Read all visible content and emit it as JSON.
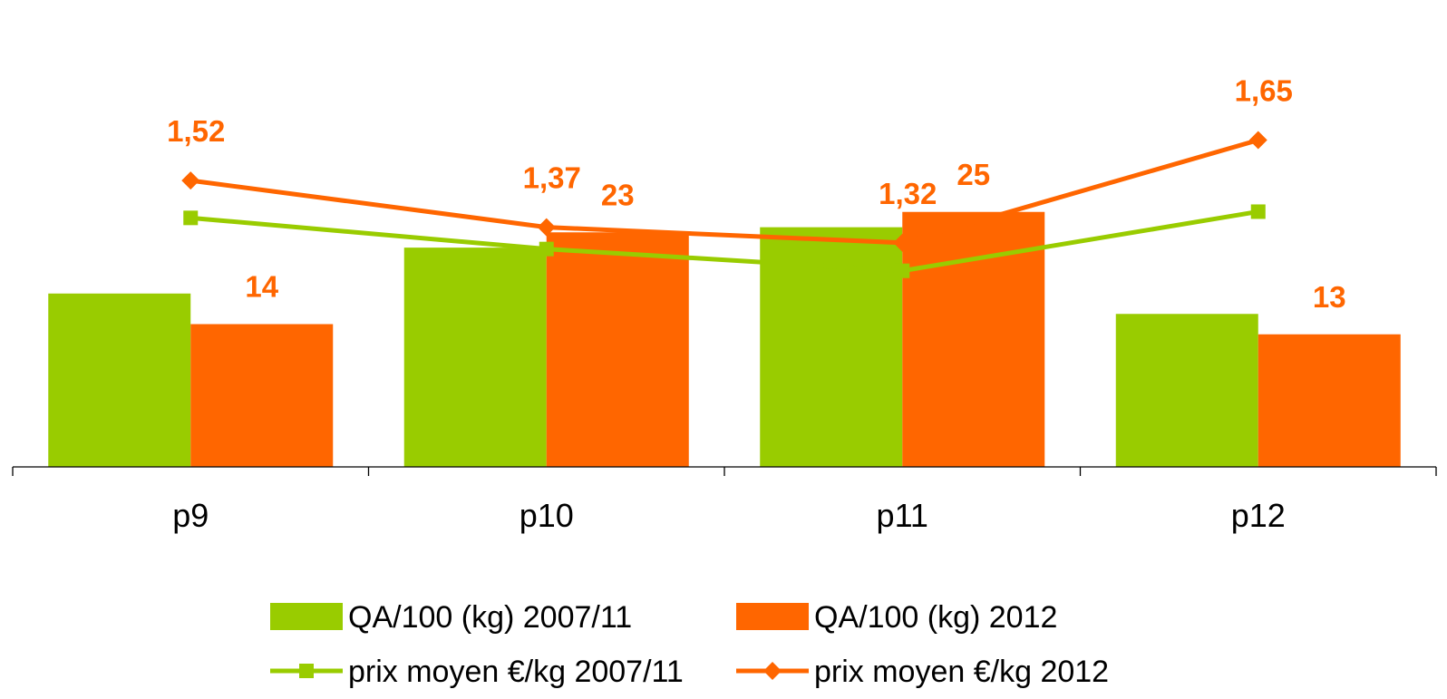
{
  "chart_data": {
    "type": "bar",
    "categories": [
      "p9",
      "p10",
      "p11",
      "p12"
    ],
    "series": [
      {
        "name": "QA/100 (kg) 2007/11",
        "type": "bar",
        "axis": "left",
        "color": "#99cc00",
        "values": [
          17,
          21.5,
          23.5,
          15
        ],
        "labels": [
          "",
          "",
          "",
          ""
        ]
      },
      {
        "name": "QA/100 (kg) 2012",
        "type": "bar",
        "axis": "left",
        "color": "#ff6600",
        "values": [
          14,
          23,
          25,
          13
        ],
        "labels": [
          "14",
          "23",
          "25",
          "13"
        ]
      },
      {
        "name": "prix moyen €/kg 2007/11",
        "type": "line",
        "axis": "right",
        "marker": "square",
        "color": "#99cc00",
        "values": [
          1.4,
          1.3,
          1.23,
          1.42
        ],
        "labels": [
          "",
          "",
          "",
          ""
        ]
      },
      {
        "name": "prix moyen €/kg 2012",
        "type": "line",
        "axis": "right",
        "marker": "diamond",
        "color": "#ff6600",
        "values": [
          1.52,
          1.37,
          1.32,
          1.65
        ],
        "labels": [
          "1,52",
          "1,37",
          "1,32",
          "1,65"
        ]
      }
    ],
    "title": "",
    "xlabel": "",
    "ylabel": "",
    "ylim_bars": [
      0,
      40
    ],
    "ylim_lines": [
      0.6,
      2.1
    ],
    "grid": false,
    "legend_position": "bottom"
  }
}
